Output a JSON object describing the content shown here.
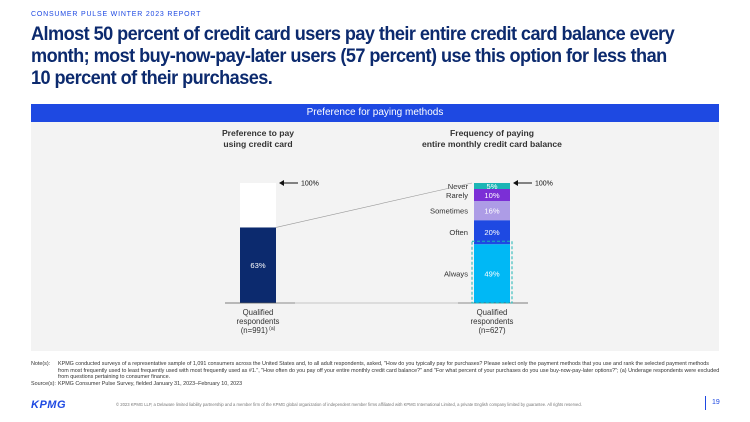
{
  "kicker": "CONSUMER PULSE WINTER 2023 REPORT",
  "headline": "Almost 50 percent of credit card users pay their entire credit card balance every month; most buy-now-pay-later users (57 percent) use this option for less than 10 percent of their purchases.",
  "panel_title": "Preference for paying methods",
  "colors": {
    "accent": "#1e49e2",
    "dark_blue": "#0c2a6e",
    "light_blue": "#00b8f5",
    "purple": "#7b2fd6",
    "lavender": "#ad9ce6",
    "teal": "#1bb5b5"
  },
  "chart_data": [
    {
      "type": "bar",
      "title": "Preference to pay using credit card",
      "categories": [
        "Qualified respondents (n=991)"
      ],
      "category_label_lines": [
        "Qualified",
        "respondents",
        "(n=991)"
      ],
      "category_footnote": "(a)",
      "total_label": "100%",
      "ylim": [
        0,
        100
      ],
      "series": [
        {
          "value": 63,
          "label": "63%",
          "color": "#0c2a6e"
        },
        {
          "value": 37,
          "label": "",
          "color": "#ffffff"
        }
      ]
    },
    {
      "type": "bar",
      "title": "Frequency of paying entire monthly credit card balance",
      "categories": [
        "Qualified respondents (n=627)"
      ],
      "category_label_lines": [
        "Qualified",
        "respondents",
        "(n=627)"
      ],
      "total_label": "100%",
      "ylim": [
        0,
        100
      ],
      "series": [
        {
          "name": "Always",
          "value": 49,
          "label": "49%",
          "color": "#00b8f5"
        },
        {
          "name": "Often",
          "value": 20,
          "label": "20%",
          "color": "#1e49e2"
        },
        {
          "name": "Sometimes",
          "value": 16,
          "label": "16%",
          "color": "#ad9ce6"
        },
        {
          "name": "Rarely",
          "value": 10,
          "label": "10%",
          "color": "#7b2fd6"
        },
        {
          "name": "Never",
          "value": 5,
          "label": "5%",
          "color": "#1bb5b5"
        }
      ]
    }
  ],
  "notes_label": "Note(s):",
  "notes_text": "KPMG conducted surveys of a representative sample of 1,091 consumers across the United States and, to all adult respondents, asked, \"How do you typically pay for purchases? Please select only the payment methods that you use and rank the selected payment methods from most frequently used to least frequently used with most frequently used as #1.\", \"How often do you pay off your entire monthly credit card balance?\" and \"For what percent of your purchases do you use buy-now-pay-later options?\"; (a) Underage respondents were excluded from questions pertaining to consumer finance.",
  "sources_label": "Source(s):",
  "sources_text": "KPMG Consumer Pulse Survey, fielded January 31, 2023–February 10, 2023",
  "logo_text": "KPMG",
  "legal_text": "© 2023 KPMG LLP, a Delaware limited liability partnership and a member firm of the KPMG global organization of independent member firms affiliated with KPMG International Limited, a private English company limited by guarantee. All rights reserved.",
  "page_number": "19"
}
